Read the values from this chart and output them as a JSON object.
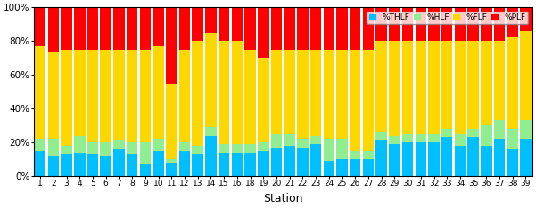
{
  "stations": [
    1,
    2,
    3,
    4,
    5,
    6,
    7,
    8,
    9,
    10,
    11,
    12,
    13,
    14,
    15,
    16,
    18,
    19,
    20,
    21,
    22,
    23,
    24,
    25,
    26,
    27,
    28,
    29,
    30,
    31,
    32,
    33,
    34,
    35,
    36,
    37,
    38,
    39
  ],
  "THLF": [
    15,
    12,
    13,
    14,
    13,
    12,
    16,
    13,
    7,
    15,
    8,
    15,
    13,
    24,
    14,
    14,
    14,
    15,
    17,
    18,
    17,
    19,
    9,
    10,
    10,
    10,
    21,
    19,
    20,
    20,
    20,
    23,
    18,
    23,
    18,
    22,
    16,
    22
  ],
  "HLF": [
    7,
    10,
    5,
    10,
    7,
    8,
    5,
    7,
    13,
    7,
    2,
    5,
    5,
    5,
    5,
    5,
    5,
    5,
    8,
    7,
    5,
    5,
    13,
    12,
    5,
    5,
    5,
    5,
    5,
    5,
    5,
    5,
    7,
    5,
    12,
    11,
    12,
    11
  ],
  "FLF": [
    55,
    52,
    57,
    51,
    55,
    55,
    54,
    55,
    55,
    55,
    45,
    55,
    62,
    56,
    61,
    61,
    56,
    50,
    50,
    50,
    53,
    51,
    53,
    53,
    60,
    60,
    54,
    56,
    55,
    55,
    55,
    52,
    55,
    52,
    50,
    47,
    54,
    53
  ],
  "PLF": [
    23,
    26,
    25,
    25,
    25,
    25,
    25,
    25,
    25,
    23,
    45,
    25,
    20,
    15,
    20,
    20,
    25,
    30,
    25,
    25,
    25,
    25,
    25,
    25,
    25,
    25,
    20,
    20,
    20,
    20,
    20,
    20,
    20,
    20,
    20,
    20,
    18,
    14
  ],
  "colors": {
    "THLF": "#00BFFF",
    "HLF": "#90EE90",
    "FLF": "#FFD700",
    "PLF": "#FF0000"
  },
  "legend_labels": [
    "%THLF",
    "%HLF",
    "%FLF",
    "%PLF"
  ],
  "xlabel": "Station",
  "ylabel": "",
  "ylim": [
    0,
    100
  ],
  "yticks": [
    0,
    20,
    40,
    60,
    80,
    100
  ],
  "ytick_labels": [
    "0%",
    "20%",
    "40%",
    "60%",
    "80%",
    "100%"
  ],
  "figsize": [
    6.01,
    2.34
  ],
  "dpi": 100
}
